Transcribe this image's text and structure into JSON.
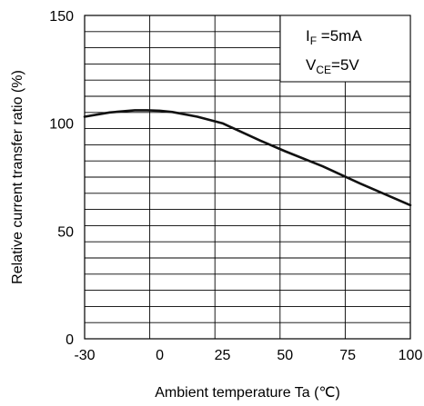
{
  "chart_data": {
    "type": "line",
    "title": "",
    "xlabel": "Ambient temperature Ta (℃)",
    "ylabel": "Relative current transfer ratio (%)",
    "xlim": [
      -30,
      100
    ],
    "ylim": [
      0,
      150
    ],
    "x_ticks": [
      "-30",
      "0",
      "25",
      "50",
      "75",
      "100"
    ],
    "y_ticks": [
      "0",
      "50",
      "100",
      "150"
    ],
    "x_tick_values": [
      -30,
      0,
      25,
      50,
      75,
      100
    ],
    "y_tick_values": [
      0,
      50,
      100,
      150
    ],
    "grid": true,
    "legend": "none",
    "annotations": {
      "i_main": "I",
      "i_sub": "F",
      "i_val": " =5mA",
      "v_main": "V",
      "v_sub": "CE",
      "v_val": "=5V"
    },
    "series": [
      {
        "x": [
          -30,
          -20,
          -10,
          -5,
          0,
          5,
          15,
          25,
          40,
          50,
          65,
          80,
          100
        ],
        "values": [
          103,
          105,
          106,
          106,
          105.8,
          105.2,
          103,
          100,
          92,
          87,
          80,
          72,
          62
        ]
      }
    ],
    "colors": {
      "line": "#111111",
      "grid": "#000000"
    }
  }
}
